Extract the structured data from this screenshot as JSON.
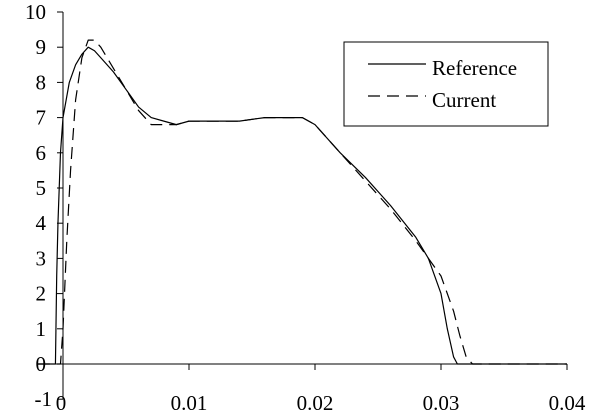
{
  "chart_data": {
    "type": "line",
    "xlim": [
      -0.002,
      0.04
    ],
    "ylim": [
      -1,
      10
    ],
    "x_ticks": [
      0,
      0.01,
      0.02,
      0.03,
      0.04
    ],
    "x_tick_labels": [
      "0",
      "0.01",
      "0.02",
      "0.03",
      "0.04"
    ],
    "y_ticks": [
      -1,
      0,
      1,
      2,
      3,
      4,
      5,
      6,
      7,
      8,
      9,
      10
    ],
    "y_tick_labels": [
      "-1",
      "0",
      "1",
      "2",
      "3",
      "4",
      "5",
      "6",
      "7",
      "8",
      "9",
      "10"
    ],
    "grid": false,
    "legend_position": "top-right",
    "series": [
      {
        "name": "Reference",
        "style": "solid",
        "color": "#000000",
        "x": [
          -0.002,
          -0.0006,
          -0.0005,
          -0.0004,
          -0.0003,
          -0.0002,
          0.0,
          0.0005,
          0.001,
          0.0015,
          0.002,
          0.0025,
          0.003,
          0.004,
          0.005,
          0.006,
          0.007,
          0.008,
          0.009,
          0.01,
          0.012,
          0.014,
          0.016,
          0.018,
          0.019,
          0.02,
          0.021,
          0.022,
          0.024,
          0.026,
          0.028,
          0.029,
          0.03,
          0.0305,
          0.031,
          0.0313,
          0.0315,
          0.032,
          0.034,
          0.036,
          0.038,
          0.04
        ],
        "y": [
          0.0,
          0.0,
          2.5,
          4.0,
          5.0,
          6.0,
          7.0,
          8.0,
          8.5,
          8.8,
          9.0,
          8.9,
          8.7,
          8.3,
          7.8,
          7.3,
          7.0,
          6.9,
          6.8,
          6.9,
          6.9,
          6.9,
          7.0,
          7.0,
          7.0,
          6.8,
          6.4,
          6.0,
          5.3,
          4.5,
          3.6,
          3.0,
          2.0,
          1.0,
          0.2,
          0.0,
          0.0,
          0.0,
          0.0,
          0.0,
          0.0,
          0.0
        ]
      },
      {
        "name": "Current",
        "style": "dashed",
        "color": "#000000",
        "x": [
          -0.002,
          -0.0002,
          0.0,
          0.0003,
          0.0006,
          0.001,
          0.0015,
          0.002,
          0.0025,
          0.003,
          0.004,
          0.005,
          0.006,
          0.007,
          0.008,
          0.009,
          0.01,
          0.012,
          0.014,
          0.016,
          0.018,
          0.019,
          0.02,
          0.021,
          0.022,
          0.024,
          0.026,
          0.028,
          0.029,
          0.03,
          0.031,
          0.0315,
          0.032,
          0.0325,
          0.034,
          0.036,
          0.038,
          0.04
        ],
        "y": [
          0.0,
          0.0,
          1.0,
          3.5,
          5.5,
          7.5,
          8.7,
          9.2,
          9.2,
          9.0,
          8.4,
          7.8,
          7.2,
          6.8,
          6.8,
          6.8,
          6.9,
          6.9,
          6.9,
          7.0,
          7.0,
          7.0,
          6.8,
          6.4,
          6.0,
          5.2,
          4.4,
          3.5,
          3.0,
          2.5,
          1.5,
          0.8,
          0.2,
          0.0,
          0.0,
          0.0,
          0.0,
          0.0
        ]
      }
    ]
  }
}
